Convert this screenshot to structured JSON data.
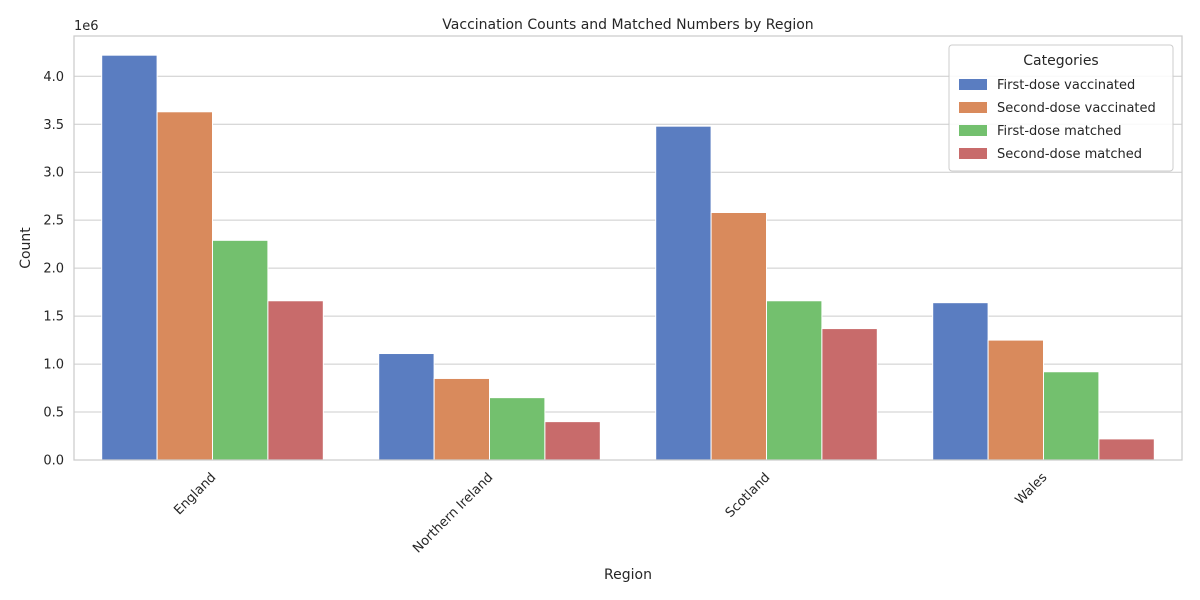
{
  "chart_data": {
    "type": "bar",
    "title": "Vaccination Counts and Matched Numbers by Region",
    "xlabel": "Region",
    "ylabel": "Count",
    "offset_label": "1e6",
    "categories": [
      "England",
      "Northern Ireland",
      "Scotland",
      "Wales"
    ],
    "ylim": [
      0,
      4420000
    ],
    "yticks": [
      0,
      500000,
      1000000,
      1500000,
      2000000,
      2500000,
      3000000,
      3500000,
      4000000
    ],
    "ytick_labels": [
      "0.0",
      "0.5",
      "1.0",
      "1.5",
      "2.0",
      "2.5",
      "3.0",
      "3.5",
      "4.0"
    ],
    "grid": true,
    "legend": {
      "title": "Categories",
      "placement": "top-right"
    },
    "series": [
      {
        "name": "First-dose vaccinated",
        "color": "#5a7dc1",
        "values": [
          4220000,
          1110000,
          3480000,
          1640000
        ]
      },
      {
        "name": "Second-dose vaccinated",
        "color": "#d98a5c",
        "values": [
          3630000,
          850000,
          2580000,
          1250000
        ]
      },
      {
        "name": "First-dose matched",
        "color": "#73c06e",
        "values": [
          2290000,
          650000,
          1660000,
          920000
        ]
      },
      {
        "name": "Second-dose matched",
        "color": "#c86b6b",
        "values": [
          1660000,
          400000,
          1370000,
          220000
        ]
      }
    ]
  }
}
